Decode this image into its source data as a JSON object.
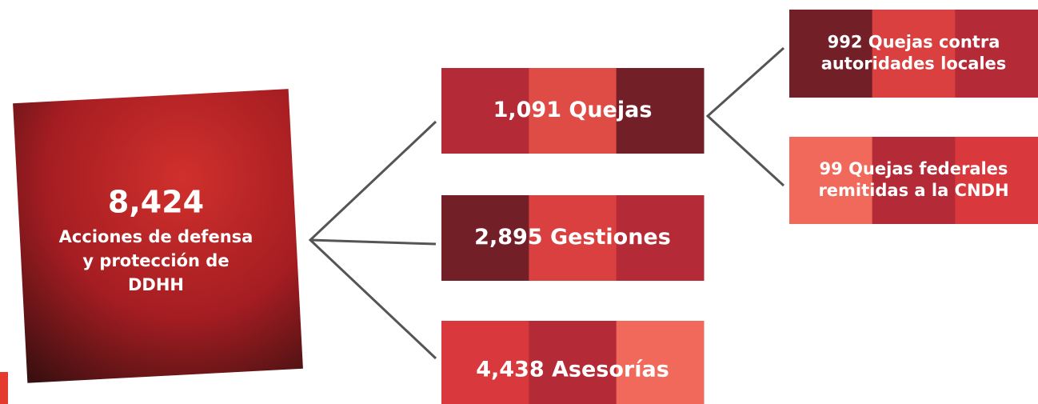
{
  "root": {
    "value": "8,424",
    "lines": [
      "Acciones de defensa",
      "y protección de",
      "DDHH"
    ]
  },
  "nodes": [
    {
      "lines": [
        "1,091 Quejas"
      ]
    },
    {
      "lines": [
        "2,895 Gestiones"
      ]
    },
    {
      "lines": [
        "4,438 Asesorías"
      ]
    },
    {
      "lines": [
        "992 Quejas contra",
        "autoridades locales"
      ]
    },
    {
      "lines": [
        "99 Quejas federales",
        "remitidas a la CNDH"
      ]
    }
  ]
}
